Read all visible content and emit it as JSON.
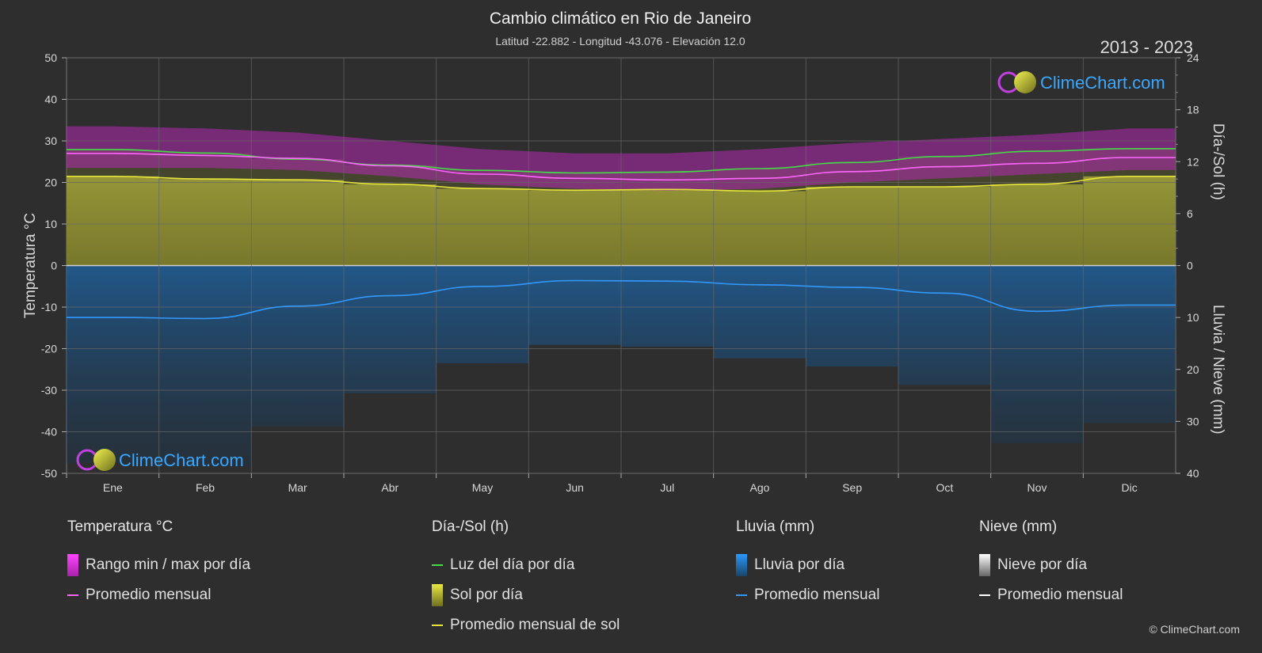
{
  "chart_data": {
    "type": "area",
    "title": "Cambio climático en Rio de Janeiro",
    "subtitle": "Latitud -22.882 - Longitud -43.076 - Elevación 12.0",
    "period": "2013 - 2023",
    "watermark": "ClimeChart.com",
    "copyright": "© ClimeChart.com",
    "categories": [
      "Ene",
      "Feb",
      "Mar",
      "Abr",
      "May",
      "Jun",
      "Jul",
      "Ago",
      "Sep",
      "Oct",
      "Nov",
      "Dic"
    ],
    "y_left": {
      "label": "Temperatura °C",
      "range": [
        -50,
        50
      ],
      "ticks": [
        50,
        40,
        30,
        20,
        10,
        0,
        -10,
        -20,
        -30,
        -40,
        -50
      ]
    },
    "y_right_top": {
      "label": "Día-/Sol (h)",
      "range": [
        0,
        24
      ],
      "ticks": [
        24,
        18,
        12,
        6,
        0
      ]
    },
    "y_right_bottom": {
      "label": "Lluvia / Nieve (mm)",
      "range": [
        0,
        40
      ],
      "ticks": [
        0,
        10,
        20,
        30,
        40
      ]
    },
    "series": [
      {
        "name": "Luz del día por día",
        "unit": "h",
        "color": "#44dd44",
        "values": [
          13.4,
          13.0,
          12.3,
          11.6,
          11.0,
          10.7,
          10.8,
          11.2,
          11.9,
          12.6,
          13.2,
          13.5
        ]
      },
      {
        "name": "Promedio mensual de sol",
        "unit": "h",
        "color": "#e6e63a",
        "values": [
          10.3,
          10.0,
          9.9,
          9.4,
          8.9,
          8.7,
          8.8,
          8.6,
          9.1,
          9.1,
          9.4,
          10.3
        ]
      },
      {
        "name": "Promedio mensual",
        "group": "Temperatura",
        "unit": "°C",
        "color": "#ff66ff",
        "values": [
          27.0,
          26.5,
          25.8,
          24.0,
          22.0,
          21.0,
          20.6,
          21.0,
          22.6,
          23.8,
          24.6,
          26.0
        ]
      },
      {
        "name": "Rango min / max por día",
        "unit": "°C",
        "color": "#cc22cc",
        "min": [
          23.5,
          23.5,
          23.0,
          21.5,
          19.5,
          18.5,
          18.0,
          18.5,
          20.0,
          21.0,
          22.0,
          23.0
        ],
        "max": [
          33.5,
          33.0,
          32.0,
          30.0,
          28.0,
          27.0,
          27.0,
          28.0,
          29.5,
          30.5,
          31.5,
          33.0
        ]
      },
      {
        "name": "Promedio mensual",
        "group": "Lluvia",
        "unit": "mm",
        "color": "#3399ff",
        "values": [
          10.0,
          10.2,
          7.8,
          5.8,
          4.0,
          2.9,
          3.0,
          3.7,
          4.2,
          5.3,
          8.8,
          7.6
        ]
      }
    ]
  },
  "legend": {
    "groups": [
      {
        "title": "Temperatura °C",
        "items": [
          {
            "label": "Rango min / max por día",
            "kind": "box",
            "color": "#cc22cc"
          },
          {
            "label": "Promedio mensual",
            "kind": "line",
            "color": "#ff66ff"
          }
        ]
      },
      {
        "title": "Día-/Sol (h)",
        "items": [
          {
            "label": "Luz del día por día",
            "kind": "line",
            "color": "#44dd44"
          },
          {
            "label": "Sol por día",
            "kind": "box",
            "color": "#c8c83a"
          },
          {
            "label": "Promedio mensual de sol",
            "kind": "line",
            "color": "#e6e63a"
          }
        ]
      },
      {
        "title": "Lluvia (mm)",
        "items": [
          {
            "label": "Lluvia por día",
            "kind": "box",
            "color": "#2a88dd"
          },
          {
            "label": "Promedio mensual",
            "kind": "line",
            "color": "#3399ff"
          }
        ]
      },
      {
        "title": "Nieve (mm)",
        "items": [
          {
            "label": "Nieve por día",
            "kind": "box",
            "color": "#dddddd"
          },
          {
            "label": "Promedio mensual",
            "kind": "line",
            "color": "#ffffff"
          }
        ]
      }
    ]
  }
}
